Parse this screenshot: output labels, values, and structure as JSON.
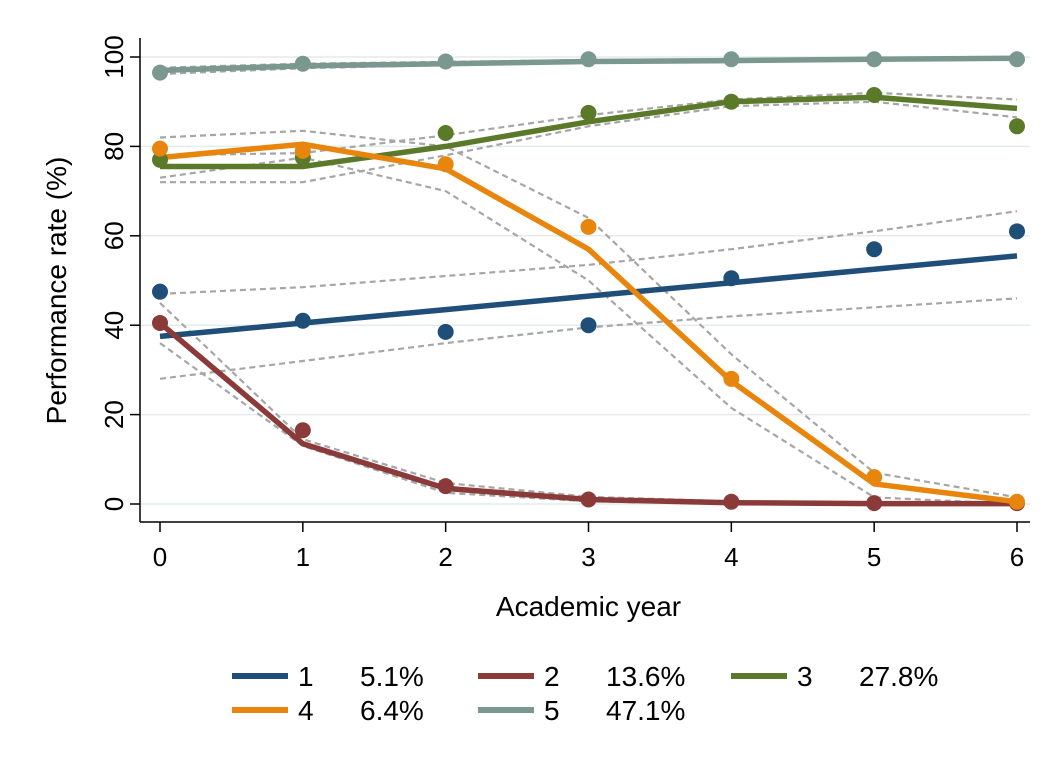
{
  "chart_data": {
    "type": "line",
    "title": "",
    "xlabel": "Academic year",
    "ylabel": "Performance rate (%)",
    "xlim": [
      0,
      6
    ],
    "ylim": [
      0,
      100
    ],
    "x_ticks": [
      "0",
      "1",
      "2",
      "3",
      "4",
      "5",
      "6"
    ],
    "y_ticks": [
      "0",
      "20",
      "40",
      "60",
      "80",
      "100"
    ],
    "grid": "horizontal",
    "legend_position": "bottom",
    "x": [
      0,
      1,
      2,
      3,
      4,
      5,
      6
    ],
    "series": [
      {
        "name": "1",
        "share": "5.1%",
        "color": "#1f4e79",
        "observed": [
          47.5,
          41,
          38.5,
          40,
          50.5,
          57,
          61
        ],
        "fitted": [
          37.5,
          40.5,
          43.5,
          46.5,
          49.5,
          52.5,
          55.5
        ],
        "ci_lower": [
          28,
          32,
          36,
          39.5,
          42,
          44,
          46
        ],
        "ci_upper": [
          47,
          48.5,
          51,
          53.5,
          57,
          61,
          65.5
        ]
      },
      {
        "name": "2",
        "share": "13.6%",
        "color": "#8b3a3a",
        "observed": [
          40.5,
          16.5,
          4,
          1,
          0.5,
          0.2,
          0.2
        ],
        "fitted": [
          40.5,
          13.5,
          3.5,
          1,
          0.3,
          0.1,
          0.1
        ],
        "ci_lower": [
          36,
          13,
          2.5,
          0.6,
          0.1,
          0,
          0
        ],
        "ci_upper": [
          45,
          14.5,
          4.7,
          1.6,
          0.6,
          0.3,
          0.2
        ]
      },
      {
        "name": "3",
        "share": "27.8%",
        "color": "#5a7a29",
        "observed": [
          77,
          77.5,
          83,
          87.5,
          90,
          91.5,
          84.5
        ],
        "fitted": [
          75.5,
          75.5,
          80,
          85.5,
          90,
          91,
          88.5
        ],
        "ci_lower": [
          72,
          72,
          78,
          84.5,
          89,
          90,
          86.5
        ],
        "ci_upper": [
          78,
          78.5,
          82.5,
          87,
          90.5,
          92,
          90.5
        ]
      },
      {
        "name": "4",
        "share": "6.4%",
        "color": "#e8850c",
        "observed": [
          79.5,
          79,
          76,
          62,
          28,
          6,
          0.5
        ],
        "fitted": [
          77.5,
          80.5,
          75,
          57,
          27.5,
          4.5,
          0.5
        ],
        "ci_lower": [
          73,
          77.5,
          70,
          50,
          21.5,
          1.5,
          0
        ],
        "ci_upper": [
          82,
          83.5,
          80,
          64,
          33.5,
          7,
          1.5
        ]
      },
      {
        "name": "5",
        "share": "47.1%",
        "color": "#7a9790",
        "observed": [
          96.5,
          98.5,
          99,
          99.5,
          99.5,
          99.5,
          99.5
        ],
        "fitted": [
          97,
          98,
          98.5,
          99,
          99.2,
          99.5,
          99.7
        ],
        "ci_lower": [
          96.2,
          97.5,
          98.2,
          98.7,
          98.9,
          99.2,
          99.4
        ],
        "ci_upper": [
          97.6,
          98.5,
          98.9,
          99.3,
          99.5,
          99.8,
          100
        ]
      }
    ]
  }
}
